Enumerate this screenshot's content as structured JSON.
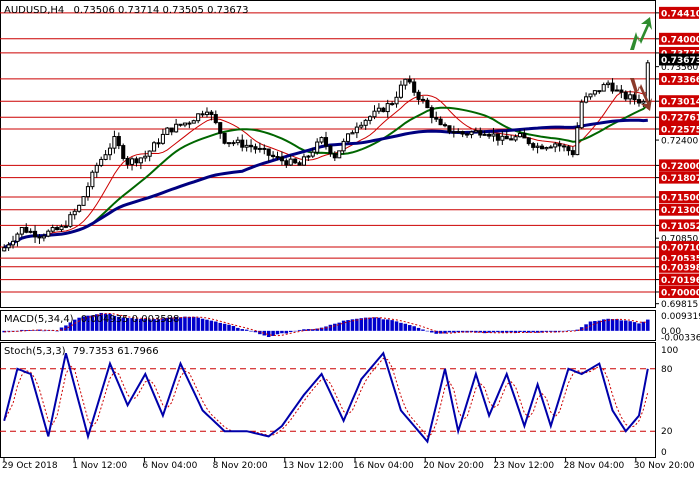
{
  "header": {
    "symbol": "AUDUSD,H4",
    "ohlc": "0.73506 0.73714 0.73505 0.73673"
  },
  "colors": {
    "level_line": "#cc0000",
    "candle": "#000000",
    "ma_fast": "#cc0000",
    "ma_mid": "#006600",
    "ma_slow": "#000080",
    "macd_hist": "#0000cc",
    "macd_signal": "#cc0000",
    "stoch_main": "#0000aa",
    "stoch_signal": "#cc0000",
    "arrow_up": "#2e8b2e",
    "arrow_down": "#8b3a2a"
  },
  "icons": [
    "arrow-up-icon",
    "arrow-down-icon"
  ],
  "chart_data": [
    {
      "type": "candlestick",
      "title": "AUDUSD,H4",
      "ylim": [
        0.6981,
        0.7455
      ],
      "y_ticks": [
        "0.74410",
        "0.74000",
        "0.73777",
        "0.73560",
        "0.73366",
        "0.73014",
        "0.72761",
        "0.72575",
        "0.72400",
        "0.72000",
        "0.71807",
        "0.71500",
        "0.71300",
        "0.71052",
        "0.70850",
        "0.70710",
        "0.70535",
        "0.70398",
        "0.70196",
        "0.70000",
        "0.69815"
      ],
      "support_resistance_levels": [
        "0.74410",
        "0.74000",
        "0.73777",
        "0.73366",
        "0.73014",
        "0.72761",
        "0.72575",
        "0.72000",
        "0.71807",
        "0.71500",
        "0.71300",
        "0.71052",
        "0.70710",
        "0.70535",
        "0.70398",
        "0.70196",
        "0.70000"
      ],
      "current_price": "0.73673",
      "x_tick_labels": [
        "29 Oct 2018",
        "1 Nov 12:00",
        "6 Nov 04:00",
        "8 Nov 20:00",
        "13 Nov 12:00",
        "16 Nov 04:00",
        "20 Nov 20:00",
        "23 Nov 12:00",
        "28 Nov 04:00",
        "30 Nov 20:00"
      ],
      "anchors": [
        {
          "t": 0,
          "p": 0.707
        },
        {
          "t": 4,
          "p": 0.71
        },
        {
          "t": 8,
          "p": 0.709
        },
        {
          "t": 13,
          "p": 0.71
        },
        {
          "t": 17,
          "p": 0.7135
        },
        {
          "t": 21,
          "p": 0.72
        },
        {
          "t": 25,
          "p": 0.724
        },
        {
          "t": 28,
          "p": 0.7205
        },
        {
          "t": 32,
          "p": 0.7215
        },
        {
          "t": 37,
          "p": 0.7255
        },
        {
          "t": 42,
          "p": 0.727
        },
        {
          "t": 46,
          "p": 0.729
        },
        {
          "t": 50,
          "p": 0.724
        },
        {
          "t": 56,
          "p": 0.723
        },
        {
          "t": 62,
          "p": 0.721
        },
        {
          "t": 67,
          "p": 0.72
        },
        {
          "t": 72,
          "p": 0.724
        },
        {
          "t": 75,
          "p": 0.7215
        },
        {
          "t": 80,
          "p": 0.7265
        },
        {
          "t": 85,
          "p": 0.7285
        },
        {
          "t": 88,
          "p": 0.73
        },
        {
          "t": 91,
          "p": 0.7335
        },
        {
          "t": 95,
          "p": 0.73
        },
        {
          "t": 99,
          "p": 0.726
        },
        {
          "t": 104,
          "p": 0.725
        },
        {
          "t": 109,
          "p": 0.7255
        },
        {
          "t": 113,
          "p": 0.724
        },
        {
          "t": 117,
          "p": 0.7245
        },
        {
          "t": 121,
          "p": 0.723
        },
        {
          "t": 125,
          "p": 0.7235
        },
        {
          "t": 129,
          "p": 0.722
        },
        {
          "t": 131,
          "p": 0.73
        },
        {
          "t": 134,
          "p": 0.7315
        },
        {
          "t": 137,
          "p": 0.733
        },
        {
          "t": 140,
          "p": 0.731
        },
        {
          "t": 143,
          "p": 0.7305
        },
        {
          "t": 145,
          "p": 0.73
        },
        {
          "t": 146,
          "p": 0.7367
        }
      ],
      "candle_count": 147
    },
    {
      "type": "bar",
      "title": "MACD(5,34,4)",
      "header_values": "0.004935 0.003588",
      "y_ticks": [
        "0.009319",
        "0.00",
        "-0.003368"
      ],
      "ylim": [
        -0.00365,
        0.0096
      ],
      "anchors": [
        {
          "t": 0,
          "v": -0.0005
        },
        {
          "t": 6,
          "v": 0.0005
        },
        {
          "t": 12,
          "v": 0.0
        },
        {
          "t": 16,
          "v": 0.006
        },
        {
          "t": 22,
          "v": 0.0093
        },
        {
          "t": 28,
          "v": 0.0065
        },
        {
          "t": 34,
          "v": 0.006
        },
        {
          "t": 40,
          "v": 0.007
        },
        {
          "t": 44,
          "v": 0.007
        },
        {
          "t": 49,
          "v": 0.004
        },
        {
          "t": 55,
          "v": 0.0005
        },
        {
          "t": 60,
          "v": -0.003
        },
        {
          "t": 66,
          "v": 0.0
        },
        {
          "t": 72,
          "v": 0.0015
        },
        {
          "t": 77,
          "v": 0.005
        },
        {
          "t": 83,
          "v": 0.007
        },
        {
          "t": 88,
          "v": 0.0055
        },
        {
          "t": 93,
          "v": 0.0025
        },
        {
          "t": 98,
          "v": -0.0015
        },
        {
          "t": 103,
          "v": -0.0005
        },
        {
          "t": 110,
          "v": -0.001
        },
        {
          "t": 118,
          "v": -0.0008
        },
        {
          "t": 126,
          "v": -0.0005
        },
        {
          "t": 130,
          "v": 0.0005
        },
        {
          "t": 133,
          "v": 0.0045
        },
        {
          "t": 137,
          "v": 0.006
        },
        {
          "t": 141,
          "v": 0.0055
        },
        {
          "t": 144,
          "v": 0.0035
        },
        {
          "t": 146,
          "v": 0.006
        }
      ]
    },
    {
      "type": "line",
      "title": "Stoch(5,3,3)",
      "header_values": "79.7353 61.7966",
      "y_ticks": [
        "100",
        "80",
        "20",
        "0"
      ],
      "ylim": [
        0,
        100
      ],
      "levels": [
        80,
        20
      ],
      "main_anchors": [
        {
          "t": 0,
          "v": 30
        },
        {
          "t": 3,
          "v": 80
        },
        {
          "t": 6,
          "v": 75
        },
        {
          "t": 10,
          "v": 15
        },
        {
          "t": 14,
          "v": 95
        },
        {
          "t": 19,
          "v": 15
        },
        {
          "t": 24,
          "v": 85
        },
        {
          "t": 28,
          "v": 45
        },
        {
          "t": 32,
          "v": 75
        },
        {
          "t": 36,
          "v": 35
        },
        {
          "t": 40,
          "v": 85
        },
        {
          "t": 45,
          "v": 40
        },
        {
          "t": 50,
          "v": 20
        },
        {
          "t": 55,
          "v": 20
        },
        {
          "t": 60,
          "v": 15
        },
        {
          "t": 63,
          "v": 25
        },
        {
          "t": 68,
          "v": 55
        },
        {
          "t": 72,
          "v": 75
        },
        {
          "t": 77,
          "v": 30
        },
        {
          "t": 81,
          "v": 70
        },
        {
          "t": 86,
          "v": 95
        },
        {
          "t": 90,
          "v": 40
        },
        {
          "t": 96,
          "v": 10
        },
        {
          "t": 100,
          "v": 80
        },
        {
          "t": 103,
          "v": 20
        },
        {
          "t": 107,
          "v": 75
        },
        {
          "t": 110,
          "v": 35
        },
        {
          "t": 114,
          "v": 75
        },
        {
          "t": 118,
          "v": 25
        },
        {
          "t": 121,
          "v": 65
        },
        {
          "t": 124,
          "v": 25
        },
        {
          "t": 128,
          "v": 80
        },
        {
          "t": 131,
          "v": 75
        },
        {
          "t": 135,
          "v": 85
        },
        {
          "t": 138,
          "v": 40
        },
        {
          "t": 141,
          "v": 20
        },
        {
          "t": 144,
          "v": 35
        },
        {
          "t": 146,
          "v": 80
        }
      ]
    }
  ]
}
